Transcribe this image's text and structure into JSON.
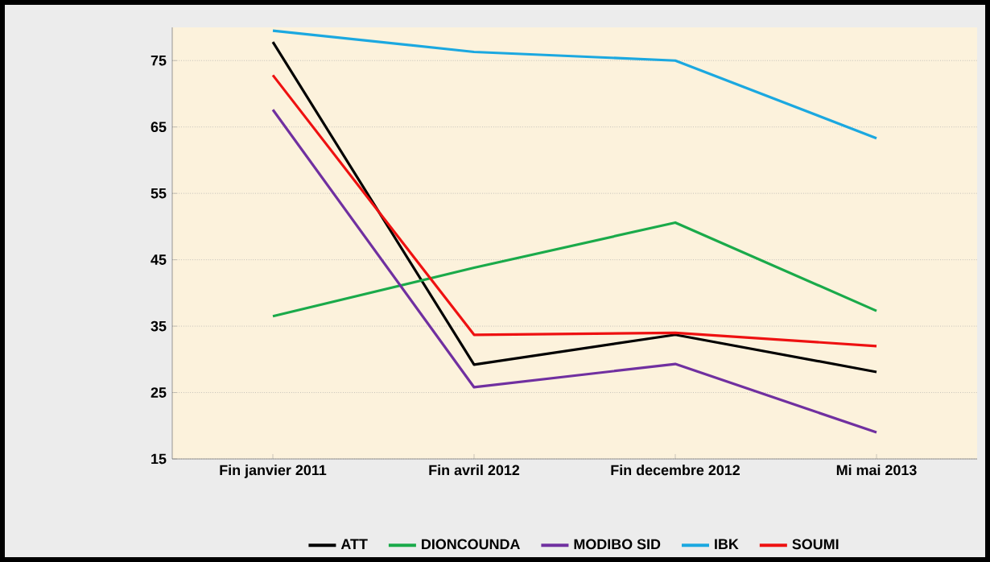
{
  "chart_data": {
    "type": "line",
    "categories": [
      "Fin janvier 2011",
      "Fin avril 2012",
      "Fin decembre 2012",
      "Mi mai 2013"
    ],
    "series": [
      {
        "name": "ATT",
        "color": "#000000",
        "values": [
          77.8,
          29.2,
          33.7,
          28.1
        ]
      },
      {
        "name": "DIONCOUNDA",
        "color": "#1aaa4a",
        "values": [
          36.5,
          43.8,
          50.6,
          37.3
        ]
      },
      {
        "name": "MODIBO SID",
        "color": "#7030a0",
        "values": [
          67.6,
          25.8,
          29.3,
          19.0
        ]
      },
      {
        "name": "IBK",
        "color": "#1ba8e0",
        "values": [
          79.5,
          76.3,
          75.0,
          63.3
        ]
      },
      {
        "name": "SOUMI",
        "color": "#ee1111",
        "values": [
          72.8,
          33.7,
          34.0,
          32.0
        ]
      }
    ],
    "ylim": [
      15,
      80
    ],
    "yticks": [
      15,
      25,
      35,
      45,
      55,
      65,
      75
    ],
    "grid": "y",
    "legend": "bottom",
    "marker": "none",
    "line_style": "solid"
  }
}
